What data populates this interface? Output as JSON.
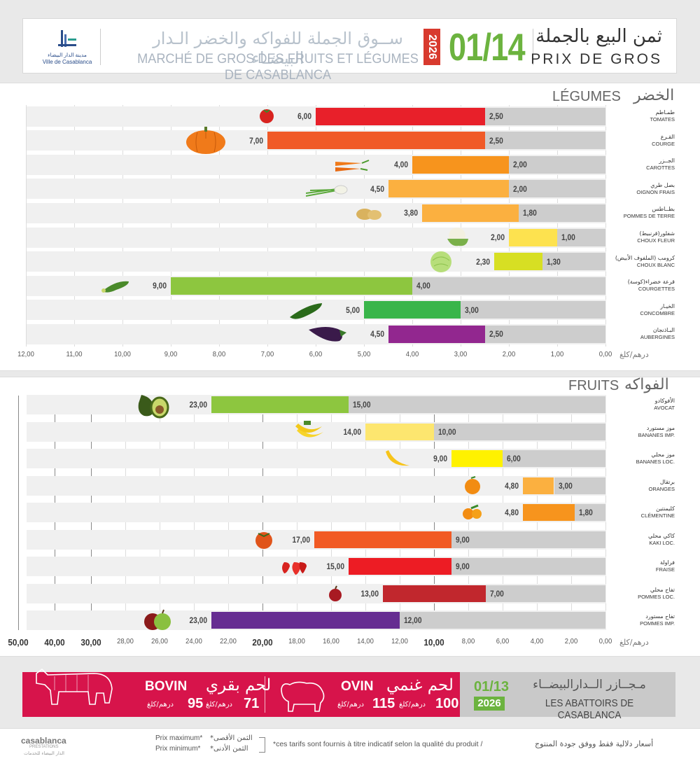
{
  "header": {
    "logo_line1": "مدينة الدار البيضاء",
    "logo_line2": "Ville de Casablanca",
    "market_ar": "ســوق الجملة للفواكه والخضر الـدار البيضـاء",
    "market_fr": "MARCHÉ DE GROS DES FRUITS ET LÉGUMES DE CASABLANCA",
    "year": "2026",
    "date": "01/14",
    "price_ar": "ثمن البيع بالجملة",
    "price_fr": "PRIX DE GROS"
  },
  "chart_data": [
    {
      "type": "bar",
      "title": "LÉGUMES",
      "title_ar": "الخضر",
      "unit_label": "درهم/كلغ",
      "xlim": [
        0,
        12
      ],
      "x_ticks": [
        "12,00",
        "11,00",
        "10,00",
        "9,00",
        "8,00",
        "7,00",
        "6,00",
        "5,00",
        "4,00",
        "3,00",
        "2,00",
        "1,00",
        "0,00"
      ],
      "categories": [
        {
          "ar": "طمـاطم",
          "fr": "TOMATES",
          "min": "2,50",
          "max": "6,00",
          "color": "#e8202a",
          "icon": "tomato-icon"
        },
        {
          "ar": "القـرع",
          "fr": "COURGE",
          "min": "2,50",
          "max": "7,00",
          "color": "#f05a28",
          "icon": "pumpkin-icon"
        },
        {
          "ar": "الجــزر",
          "fr": "CAROTTES",
          "min": "2,00",
          "max": "4,00",
          "color": "#f7941d",
          "icon": "carrot-icon"
        },
        {
          "ar": "بصل طري",
          "fr": "OIGNON FRAIS",
          "min": "2,00",
          "max": "4,50",
          "color": "#fbb040",
          "icon": "spring-onion-icon"
        },
        {
          "ar": "بطــاطس",
          "fr": "POMMES DE TERRE",
          "min": "1,80",
          "max": "3,80",
          "color": "#fbb040",
          "icon": "potato-icon"
        },
        {
          "ar": "شفلور(قرنبيط)",
          "fr": "CHOUX FLEUR",
          "min": "1,00",
          "max": "2,00",
          "color": "#fde24f",
          "icon": "cauliflower-icon"
        },
        {
          "ar": "كرومب (الملفوف الأبيض)",
          "fr": "CHOUX BLANC",
          "min": "1,30",
          "max": "2,30",
          "color": "#d7df23",
          "icon": "cabbage-icon"
        },
        {
          "ar": "قرعة خضراء(كوسة)",
          "fr": "COURGETTES",
          "min": "4,00",
          "max": "9,00",
          "color": "#8dc63f",
          "icon": "zucchini-icon"
        },
        {
          "ar": "الخيـار",
          "fr": "CONCOMBRE",
          "min": "3,00",
          "max": "5,00",
          "color": "#39b54a",
          "icon": "cucumber-icon"
        },
        {
          "ar": "البـاذنجان",
          "fr": "AUBERGINES",
          "min": "2,50",
          "max": "4,50",
          "color": "#92278f",
          "icon": "eggplant-icon"
        }
      ]
    },
    {
      "type": "bar",
      "title": "FRUITS",
      "title_ar": "الفواكه",
      "unit_label": "درهم/كلغ",
      "xlim": [
        0,
        50
      ],
      "x_ticks": [
        "50,00",
        "40,00",
        "30,00",
        "28,00",
        "26,00",
        "24,00",
        "22,00",
        "20,00",
        "18,00",
        "16,00",
        "14,00",
        "12,00",
        "10,00",
        "8,00",
        "6,00",
        "4,00",
        "2,00",
        "0,00"
      ],
      "categories": [
        {
          "ar": "الأفوكادو",
          "fr": "AVOCAT",
          "min": "15,00",
          "max": "23,00",
          "color": "#8dc63f",
          "icon": "avocado-icon"
        },
        {
          "ar": "موز مستورد",
          "fr": "BANANES IMP.",
          "min": "10,00",
          "max": "14,00",
          "color": "#fde66f",
          "icon": "banana-bunch-icon"
        },
        {
          "ar": "موز محلي",
          "fr": "BANANES LOC.",
          "min": "6,00",
          "max": "9,00",
          "color": "#fff200",
          "icon": "banana-icon"
        },
        {
          "ar": "برتقال",
          "fr": "ORANGES",
          "min": "3,00",
          "max": "4,80",
          "color": "#fbb040",
          "icon": "orange-icon"
        },
        {
          "ar": "كليمنتين",
          "fr": "CLÉMENTINE",
          "min": "1,80",
          "max": "4,80",
          "color": "#f7941d",
          "icon": "clementine-icon"
        },
        {
          "ar": "كاكي محلي",
          "fr": "KAKI LOC.",
          "min": "9,00",
          "max": "17,00",
          "color": "#f15a24",
          "icon": "kaki-icon"
        },
        {
          "ar": "فراولة",
          "fr": "FRAISE",
          "min": "9,00",
          "max": "15,00",
          "color": "#ed1c24",
          "icon": "strawberry-icon"
        },
        {
          "ar": "تفاح محلي",
          "fr": "POMMES LOC.",
          "min": "7,00",
          "max": "13,00",
          "color": "#c1272d",
          "icon": "apple-icon"
        },
        {
          "ar": "تفاح مستورد",
          "fr": "POMMES IMP.",
          "min": "12,00",
          "max": "23,00",
          "color": "#662d91",
          "icon": "apples-icon"
        }
      ]
    }
  ],
  "abattoirs": {
    "bovin_fr": "BOVIN",
    "bovin_ar": "لحم بقري",
    "bovin_min": "71",
    "bovin_max": "95",
    "ovin_fr": "OVIN",
    "ovin_ar": "لحم غنمي",
    "ovin_min": "100",
    "ovin_max": "115",
    "unit": "درهم/كلغ",
    "date": "01/13",
    "year": "2026",
    "name_ar": "مـجــازر الــدارالبيضــاء",
    "name_fr": "LES ABATTOIRS DE CASABLANCA"
  },
  "footer": {
    "brand": "casablanca",
    "brand_sub": "PRESTATIONS",
    "brand_ar": "الدار البيضاء للخدمات",
    "prix_max_fr": "Prix maximum*",
    "prix_min_fr": "Prix minimum*",
    "prix_max_ar": "*الثمن الأقصى",
    "prix_min_ar": "*الثمن الأدنى",
    "note_fr": "*ces tarifs sont fournis à titre indicatif selon la qualité du produit /",
    "note_ar": "أسعار دلالية فقط ووفق جودة المنتوج"
  }
}
